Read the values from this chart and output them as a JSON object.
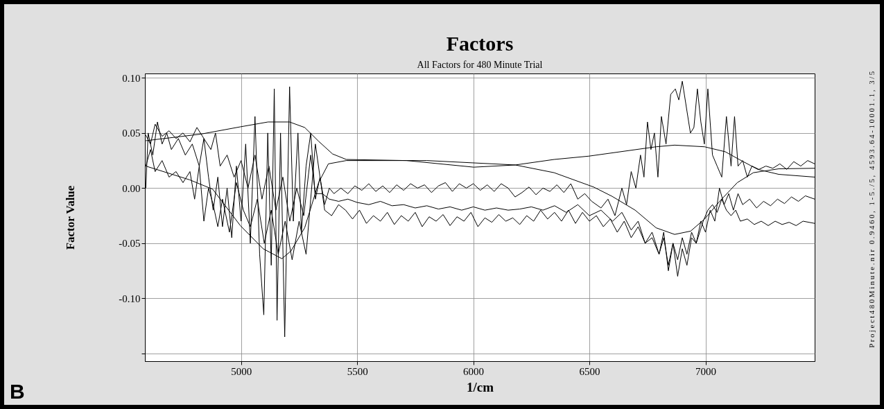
{
  "chart_data": {
    "type": "line",
    "title": "Factors",
    "subtitle": "All Factors for 480 Minute Trial",
    "xlabel": "1/cm",
    "ylabel": "Factor Value",
    "annotations": [
      "B",
      "Project480Minute.nir 0.9460, 1-5./5, 4593.64-10001.1, 3/5"
    ],
    "xlim": [
      4586,
      7470
    ],
    "xticks": [
      5000,
      5500,
      6000,
      6500,
      7000
    ],
    "ylim": [
      -0.157,
      0.104
    ],
    "yticks": [
      {
        "value": 0.1,
        "label": "0.10"
      },
      {
        "value": 0.05,
        "label": "0.05"
      },
      {
        "value": 0,
        "label": "0.00"
      },
      {
        "value": -0.05,
        "label": "-0.05"
      },
      {
        "value": -0.1,
        "label": "-0.10"
      },
      {
        "value": -0.15,
        "label": null
      }
    ],
    "grid": true,
    "legend": false,
    "series": [
      {
        "color": "#000000",
        "x": [
          4590,
          4827,
          4997,
          5116,
          5209,
          5274,
          5334,
          5394,
          5453,
          5713,
          6002,
          6181,
          6348,
          6497,
          6787,
          6867,
          6996,
          7085,
          7145,
          7225,
          7315,
          7470
        ],
        "values": [
          0.043,
          0.049,
          0.0556,
          0.06,
          0.06,
          0.055,
          0.0425,
          0.031,
          0.026,
          0.025,
          0.019,
          0.021,
          0.026,
          0.029,
          0.0375,
          0.039,
          0.0375,
          0.033,
          0.026,
          0.017,
          0.0125,
          0.01
        ]
      },
      {
        "color": "#000000",
        "x": [
          4590,
          4779,
          4878,
          4997,
          5095,
          5176,
          5215,
          5274,
          5334,
          5376,
          5453,
          5800,
          6181,
          6348,
          6518,
          6598,
          6697,
          6787,
          6867,
          6936,
          6996,
          7065,
          7137,
          7206,
          7315,
          7470
        ],
        "values": [
          0.02,
          0.0075,
          -0.001,
          -0.034,
          -0.055,
          -0.064,
          -0.057,
          -0.036,
          0.005,
          0.022,
          0.025,
          0.025,
          0.021,
          0.014,
          0.001,
          -0.0075,
          -0.02,
          -0.036,
          -0.042,
          -0.039,
          -0.028,
          -0.011,
          0.005,
          0.014,
          0.0175,
          0.018
        ]
      },
      {
        "color": "#000000",
        "x": [
          4590,
          4600,
          4620,
          4640,
          4660,
          4680,
          4700,
          4730,
          4760,
          4790,
          4820,
          4840,
          4860,
          4880,
          4900,
          4920,
          4940,
          4960,
          4980,
          5000,
          5020,
          5040,
          5060,
          5080,
          5098,
          5115,
          5130,
          5143,
          5155,
          5170,
          5188,
          5209,
          5225,
          5245,
          5260,
          5280,
          5300,
          5320,
          5340,
          5360,
          5380,
          5400,
          5430,
          5460,
          5490,
          5520,
          5550,
          5580,
          5610,
          5640,
          5670,
          5700,
          5730,
          5760,
          5790,
          5820,
          5850,
          5880,
          5910,
          5940,
          5970,
          6000,
          6030,
          6060,
          6090,
          6120,
          6150,
          6180,
          6210,
          6240,
          6270,
          6300,
          6330,
          6360,
          6390,
          6420,
          6450,
          6480,
          6510,
          6550,
          6580,
          6610,
          6640,
          6660,
          6680,
          6700,
          6720,
          6735,
          6750,
          6765,
          6780,
          6795,
          6810,
          6830,
          6850,
          6870,
          6885,
          6900,
          6920,
          6935,
          6950,
          6965,
          6980,
          6995,
          7010,
          7030,
          7050,
          7070,
          7090,
          7110,
          7125,
          7140,
          7160,
          7180,
          7200,
          7230,
          7260,
          7290,
          7320,
          7350,
          7380,
          7410,
          7440,
          7470
        ],
        "values": [
          0.0,
          0.05,
          0.03,
          0.06,
          0.04,
          0.05,
          0.035,
          0.045,
          0.03,
          0.04,
          0.02,
          0.045,
          0.01,
          -0.02,
          0.01,
          -0.035,
          0.0,
          -0.045,
          0.02,
          -0.03,
          0.04,
          -0.05,
          0.065,
          -0.06,
          -0.115,
          0.05,
          -0.07,
          0.09,
          -0.12,
          0.05,
          -0.135,
          0.092,
          -0.03,
          0.05,
          -0.04,
          0.02,
          0.05,
          -0.01,
          0.01,
          -0.015,
          0.0,
          -0.005,
          0.0,
          -0.005,
          0.002,
          -0.002,
          0.004,
          -0.003,
          0.002,
          -0.004,
          0.003,
          -0.002,
          0.004,
          0.0,
          0.003,
          -0.004,
          0.002,
          0.005,
          -0.003,
          0.004,
          0.0,
          0.004,
          -0.002,
          0.003,
          -0.003,
          0.004,
          0.0,
          -0.008,
          -0.004,
          0.001,
          -0.006,
          0.0,
          -0.003,
          0.003,
          -0.004,
          0.004,
          -0.01,
          -0.005,
          -0.012,
          -0.018,
          -0.01,
          -0.025,
          0.0,
          -0.015,
          0.015,
          0.0,
          0.03,
          0.01,
          0.06,
          0.035,
          0.05,
          0.01,
          0.065,
          0.04,
          0.085,
          0.09,
          0.08,
          0.097,
          0.07,
          0.05,
          0.055,
          0.09,
          0.06,
          0.04,
          0.09,
          0.03,
          0.02,
          0.01,
          0.065,
          0.02,
          0.065,
          0.02,
          0.025,
          0.01,
          0.02,
          0.017,
          0.02,
          0.018,
          0.022,
          0.017,
          0.024,
          0.02,
          0.025,
          0.022
        ]
      },
      {
        "color": "#000000",
        "x": [
          4590,
          4610,
          4630,
          4660,
          4690,
          4720,
          4750,
          4780,
          4810,
          4840,
          4870,
          4890,
          4910,
          4940,
          4970,
          5000,
          5030,
          5060,
          5090,
          5120,
          5150,
          5180,
          5210,
          5240,
          5270,
          5300,
          5320,
          5350,
          5380,
          5420,
          5460,
          5500,
          5550,
          5600,
          5650,
          5700,
          5750,
          5800,
          5850,
          5900,
          5950,
          6000,
          6050,
          6100,
          6150,
          6200,
          6250,
          6300,
          6350,
          6400,
          6450,
          6500,
          6550,
          6600,
          6640,
          6680,
          6710,
          6740,
          6770,
          6800,
          6820,
          6840,
          6860,
          6880,
          6900,
          6920,
          6940,
          6960,
          6980,
          7000,
          7020,
          7040,
          7060,
          7080,
          7100,
          7120,
          7140,
          7160,
          7190,
          7220,
          7250,
          7280,
          7310,
          7340,
          7370,
          7400,
          7430,
          7470
        ],
        "values": [
          0.048,
          0.04,
          0.058,
          0.047,
          0.052,
          0.045,
          0.05,
          0.042,
          0.055,
          0.045,
          0.035,
          0.05,
          0.02,
          0.03,
          0.01,
          0.025,
          0.0,
          0.03,
          -0.01,
          0.02,
          -0.02,
          0.01,
          -0.03,
          0.0,
          -0.025,
          0.03,
          -0.005,
          -0.005,
          -0.01,
          -0.012,
          -0.01,
          -0.013,
          -0.015,
          -0.012,
          -0.016,
          -0.015,
          -0.018,
          -0.016,
          -0.019,
          -0.017,
          -0.02,
          -0.017,
          -0.02,
          -0.018,
          -0.02,
          -0.019,
          -0.017,
          -0.02,
          -0.016,
          -0.022,
          -0.015,
          -0.025,
          -0.02,
          -0.03,
          -0.022,
          -0.038,
          -0.03,
          -0.05,
          -0.04,
          -0.06,
          -0.045,
          -0.07,
          -0.05,
          -0.065,
          -0.045,
          -0.06,
          -0.04,
          -0.05,
          -0.03,
          -0.04,
          -0.02,
          -0.03,
          0.0,
          -0.015,
          -0.005,
          -0.02,
          -0.005,
          -0.015,
          -0.01,
          -0.018,
          -0.012,
          -0.016,
          -0.01,
          -0.014,
          -0.008,
          -0.012,
          -0.007,
          -0.01
        ]
      },
      {
        "color": "#000000",
        "x": [
          4590,
          4610,
          4630,
          4660,
          4690,
          4720,
          4750,
          4780,
          4800,
          4820,
          4840,
          4860,
          4880,
          4900,
          4920,
          4950,
          4980,
          5010,
          5040,
          5070,
          5100,
          5130,
          5160,
          5190,
          5220,
          5250,
          5280,
          5300,
          5320,
          5340,
          5360,
          5390,
          5420,
          5450,
          5480,
          5510,
          5540,
          5570,
          5600,
          5630,
          5660,
          5690,
          5720,
          5750,
          5780,
          5810,
          5840,
          5870,
          5900,
          5930,
          5960,
          5990,
          6020,
          6050,
          6080,
          6110,
          6140,
          6170,
          6200,
          6230,
          6260,
          6290,
          6320,
          6350,
          6380,
          6410,
          6440,
          6470,
          6500,
          6530,
          6560,
          6590,
          6620,
          6650,
          6680,
          6710,
          6740,
          6770,
          6800,
          6820,
          6840,
          6860,
          6880,
          6900,
          6920,
          6940,
          6960,
          6990,
          7010,
          7030,
          7050,
          7070,
          7090,
          7110,
          7130,
          7150,
          7180,
          7210,
          7240,
          7270,
          7300,
          7330,
          7360,
          7390,
          7420,
          7470
        ],
        "values": [
          0.02,
          0.035,
          0.015,
          0.025,
          0.01,
          0.015,
          0.005,
          0.015,
          -0.01,
          0.02,
          -0.03,
          0.0,
          -0.015,
          -0.035,
          -0.01,
          -0.04,
          0.005,
          -0.02,
          -0.035,
          -0.01,
          -0.05,
          -0.02,
          -0.06,
          -0.03,
          -0.065,
          -0.03,
          -0.06,
          -0.01,
          0.04,
          0.01,
          -0.02,
          -0.025,
          -0.015,
          -0.02,
          -0.028,
          -0.02,
          -0.032,
          -0.025,
          -0.03,
          -0.022,
          -0.033,
          -0.025,
          -0.03,
          -0.022,
          -0.035,
          -0.026,
          -0.03,
          -0.024,
          -0.034,
          -0.026,
          -0.03,
          -0.022,
          -0.035,
          -0.027,
          -0.031,
          -0.024,
          -0.03,
          -0.027,
          -0.033,
          -0.025,
          -0.03,
          -0.02,
          -0.028,
          -0.022,
          -0.03,
          -0.02,
          -0.032,
          -0.022,
          -0.03,
          -0.025,
          -0.035,
          -0.028,
          -0.04,
          -0.03,
          -0.045,
          -0.035,
          -0.05,
          -0.045,
          -0.06,
          -0.04,
          -0.075,
          -0.05,
          -0.08,
          -0.055,
          -0.07,
          -0.045,
          -0.05,
          -0.03,
          -0.02,
          -0.015,
          -0.022,
          -0.01,
          -0.02,
          -0.025,
          -0.02,
          -0.03,
          -0.028,
          -0.033,
          -0.03,
          -0.034,
          -0.03,
          -0.033,
          -0.031,
          -0.034,
          -0.03,
          -0.032
        ]
      }
    ]
  }
}
